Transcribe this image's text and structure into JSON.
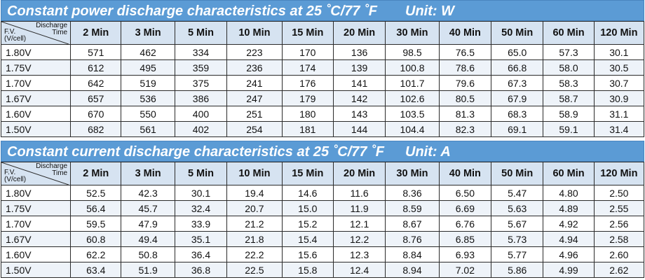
{
  "sections": [
    {
      "title": "Constant power discharge characteristics at 25 ˚C/77 ˚F",
      "unit": "Unit: W",
      "corner_top": [
        "Discharge",
        "Time"
      ],
      "corner_bottom": [
        "F.V.",
        "(V/cell)"
      ],
      "headers": [
        "2 Min",
        "3 Min",
        "5 Min",
        "10 Min",
        "15 Min",
        "20 Min",
        "30 Min",
        "40 Min",
        "50 Min",
        "60 Min",
        "120 Min"
      ],
      "rows": [
        {
          "fv": "1.80V",
          "values": [
            "571",
            "462",
            "334",
            "223",
            "170",
            "136",
            "98.5",
            "76.5",
            "65.0",
            "57.3",
            "30.1"
          ]
        },
        {
          "fv": "1.75V",
          "values": [
            "612",
            "495",
            "359",
            "236",
            "174",
            "139",
            "100.8",
            "78.6",
            "66.8",
            "58.0",
            "30.5"
          ]
        },
        {
          "fv": "1.70V",
          "values": [
            "642",
            "519",
            "375",
            "241",
            "176",
            "141",
            "101.7",
            "79.6",
            "67.3",
            "58.3",
            "30.7"
          ]
        },
        {
          "fv": "1.67V",
          "values": [
            "657",
            "536",
            "386",
            "247",
            "179",
            "142",
            "102.6",
            "80.5",
            "67.9",
            "58.7",
            "30.9"
          ]
        },
        {
          "fv": "1.60V",
          "values": [
            "670",
            "550",
            "400",
            "251",
            "180",
            "143",
            "103.5",
            "81.3",
            "68.3",
            "58.9",
            "31.1"
          ]
        },
        {
          "fv": "1.50V",
          "values": [
            "682",
            "561",
            "402",
            "254",
            "181",
            "144",
            "104.4",
            "82.3",
            "69.1",
            "59.1",
            "31.4"
          ]
        }
      ]
    },
    {
      "title": "Constant current discharge characteristics at 25 ˚C/77 ˚F",
      "unit": "Unit: A",
      "corner_top": [
        "Discharge",
        "Time"
      ],
      "corner_bottom": [
        "F.V.",
        "(V/cell)"
      ],
      "headers": [
        "2 Min",
        "3 Min",
        "5 Min",
        "10 Min",
        "15 Min",
        "20 Min",
        "30 Min",
        "40 Min",
        "50 Min",
        "60 Min",
        "120 Min"
      ],
      "rows": [
        {
          "fv": "1.80V",
          "values": [
            "52.5",
            "42.3",
            "30.1",
            "19.4",
            "14.6",
            "11.6",
            "8.36",
            "6.50",
            "5.47",
            "4.80",
            "2.50"
          ]
        },
        {
          "fv": "1.75V",
          "values": [
            "56.4",
            "45.7",
            "32.4",
            "20.7",
            "15.0",
            "11.9",
            "8.59",
            "6.69",
            "5.63",
            "4.89",
            "2.55"
          ]
        },
        {
          "fv": "1.70V",
          "values": [
            "59.5",
            "47.9",
            "33.9",
            "21.2",
            "15.2",
            "12.1",
            "8.67",
            "6.76",
            "5.67",
            "4.92",
            "2.56"
          ]
        },
        {
          "fv": "1.67V",
          "values": [
            "60.8",
            "49.4",
            "35.1",
            "21.8",
            "15.4",
            "12.2",
            "8.76",
            "6.85",
            "5.73",
            "4.94",
            "2.58"
          ]
        },
        {
          "fv": "1.60V",
          "values": [
            "62.2",
            "50.8",
            "36.4",
            "22.2",
            "15.6",
            "12.3",
            "8.84",
            "6.93",
            "5.77",
            "4.96",
            "2.60"
          ]
        },
        {
          "fv": "1.50V",
          "values": [
            "63.4",
            "51.9",
            "36.8",
            "22.5",
            "15.8",
            "12.4",
            "8.94",
            "7.02",
            "5.86",
            "4.99",
            "2.62"
          ]
        }
      ]
    }
  ]
}
